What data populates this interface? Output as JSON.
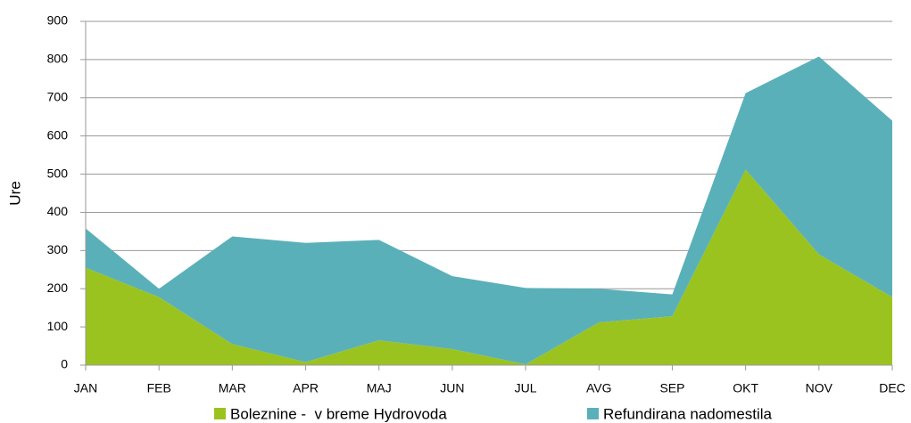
{
  "chart_data": {
    "type": "area",
    "stacked": true,
    "y_label": "Ure",
    "categories": [
      "JAN",
      "FEB",
      "MAR",
      "APR",
      "MAJ",
      "JUN",
      "JUL",
      "AVG",
      "SEP",
      "OKT",
      "NOV",
      "DEC"
    ],
    "series": [
      {
        "name": "Boleznine -  v breme Hydrovoda",
        "color": "#9bc31f",
        "values": [
          255,
          178,
          55,
          8,
          65,
          42,
          2,
          112,
          128,
          512,
          290,
          178
        ]
      },
      {
        "name": "Refundirana nadomestila",
        "color": "#5ab0b9",
        "values": [
          103,
          22,
          282,
          312,
          263,
          191,
          200,
          88,
          57,
          200,
          518,
          462
        ]
      }
    ],
    "ylim": [
      0,
      900
    ],
    "yticks": [
      0,
      100,
      200,
      300,
      400,
      500,
      600,
      700,
      800,
      900
    ],
    "grid": true
  }
}
